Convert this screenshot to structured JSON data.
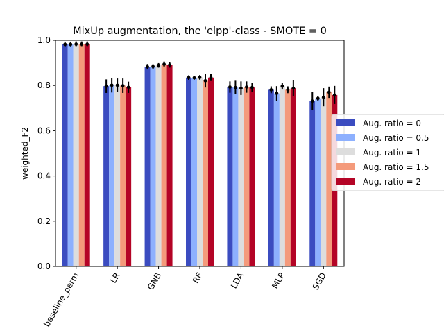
{
  "chart_data": {
    "type": "bar",
    "title": "MixUp augmentation, the 'elpp'-class - SMOTE = 0",
    "xlabel": "",
    "ylabel": "weighted_F2",
    "ylim": [
      0,
      1.0
    ],
    "yticks": [
      "0.0",
      "0.2",
      "0.4",
      "0.6",
      "0.8",
      "1.0"
    ],
    "grid": false,
    "legend_position": "center-right-outside",
    "categories": [
      "baseline_perm",
      "LR",
      "GNB",
      "RF",
      "LDA",
      "MLP",
      "SGD"
    ],
    "series": [
      {
        "name": "Aug. ratio = 0",
        "color": "#3b4cc0",
        "values": [
          0.982,
          0.797,
          0.883,
          0.835,
          0.793,
          0.781,
          0.731
        ],
        "errors": [
          0.012,
          0.03,
          0.012,
          0.01,
          0.025,
          0.015,
          0.04
        ]
      },
      {
        "name": "Aug. ratio = 0.5",
        "color": "#8db0fe",
        "values": [
          0.982,
          0.801,
          0.884,
          0.834,
          0.791,
          0.765,
          0.743
        ],
        "errors": [
          0.012,
          0.032,
          0.01,
          0.008,
          0.03,
          0.032,
          0.01
        ]
      },
      {
        "name": "Aug. ratio = 1",
        "color": "#dddddd",
        "values": [
          0.983,
          0.801,
          0.889,
          0.836,
          0.788,
          0.797,
          0.748
        ],
        "errors": [
          0.012,
          0.03,
          0.01,
          0.01,
          0.03,
          0.015,
          0.04
        ]
      },
      {
        "name": "Aug. ratio = 1.5",
        "color": "#f49a7b",
        "values": [
          0.983,
          0.799,
          0.894,
          0.821,
          0.793,
          0.781,
          0.77
        ],
        "errors": [
          0.012,
          0.032,
          0.012,
          0.03,
          0.025,
          0.015,
          0.025
        ]
      },
      {
        "name": "Aug. ratio = 2",
        "color": "#b40426",
        "values": [
          0.983,
          0.792,
          0.891,
          0.835,
          0.791,
          0.788,
          0.758
        ],
        "errors": [
          0.012,
          0.025,
          0.012,
          0.015,
          0.02,
          0.035,
          0.04
        ]
      }
    ]
  }
}
